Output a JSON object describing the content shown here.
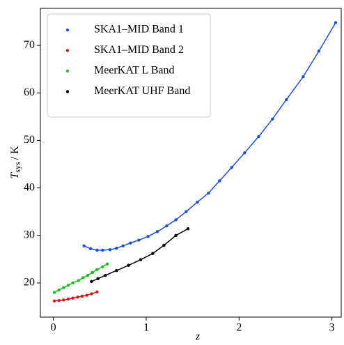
{
  "chart_data": {
    "type": "line",
    "xlabel": "z",
    "ylabel": {
      "main": "T",
      "sub": "sys",
      "unit": "/ K"
    },
    "xlim": [
      -0.14,
      3.1
    ],
    "ylim": [
      12.8,
      77.8
    ],
    "xticks": [
      0,
      1,
      2,
      3
    ],
    "yticks": [
      20,
      30,
      40,
      50,
      60,
      70
    ],
    "grid": false,
    "legend": "upper left",
    "series": [
      {
        "name": "SKA1–MID Band 1",
        "color": "#1f4fd0",
        "x": [
          0.33,
          0.4,
          0.47,
          0.53,
          0.61,
          0.68,
          0.75,
          0.83,
          0.92,
          1.02,
          1.12,
          1.22,
          1.32,
          1.43,
          1.55,
          1.67,
          1.79,
          1.92,
          2.06,
          2.21,
          2.36,
          2.51,
          2.69,
          2.86,
          3.04
        ],
        "values": [
          27.8,
          27.2,
          26.9,
          26.9,
          27.0,
          27.3,
          27.8,
          28.4,
          29.0,
          29.8,
          30.8,
          32.0,
          33.3,
          35.0,
          37.0,
          38.9,
          41.5,
          44.3,
          47.4,
          50.8,
          54.5,
          58.6,
          63.4,
          68.8,
          74.8
        ]
      },
      {
        "name": "SKA1–MID Band 2",
        "color": "#d01818",
        "x": [
          0.01,
          0.06,
          0.11,
          0.16,
          0.21,
          0.26,
          0.31,
          0.36,
          0.41,
          0.47
        ],
        "values": [
          16.2,
          16.3,
          16.4,
          16.6,
          16.8,
          17.0,
          17.2,
          17.4,
          17.7,
          18.1
        ]
      },
      {
        "name": "MeerKAT L Band",
        "color": "#22b822",
        "x": [
          0.01,
          0.06,
          0.11,
          0.16,
          0.21,
          0.27,
          0.32,
          0.37,
          0.42,
          0.47,
          0.53,
          0.58
        ],
        "values": [
          18.0,
          18.5,
          19.0,
          19.5,
          20.0,
          20.5,
          21.1,
          21.6,
          22.2,
          22.8,
          23.4,
          24.0
        ]
      },
      {
        "name": "MeerKAT UHF Band",
        "color": "#000000",
        "x": [
          0.41,
          0.48,
          0.56,
          0.68,
          0.81,
          0.94,
          1.07,
          1.19,
          1.32,
          1.45
        ],
        "values": [
          20.3,
          20.9,
          21.6,
          22.6,
          23.7,
          24.9,
          26.2,
          27.9,
          30.0,
          31.4
        ]
      }
    ]
  }
}
